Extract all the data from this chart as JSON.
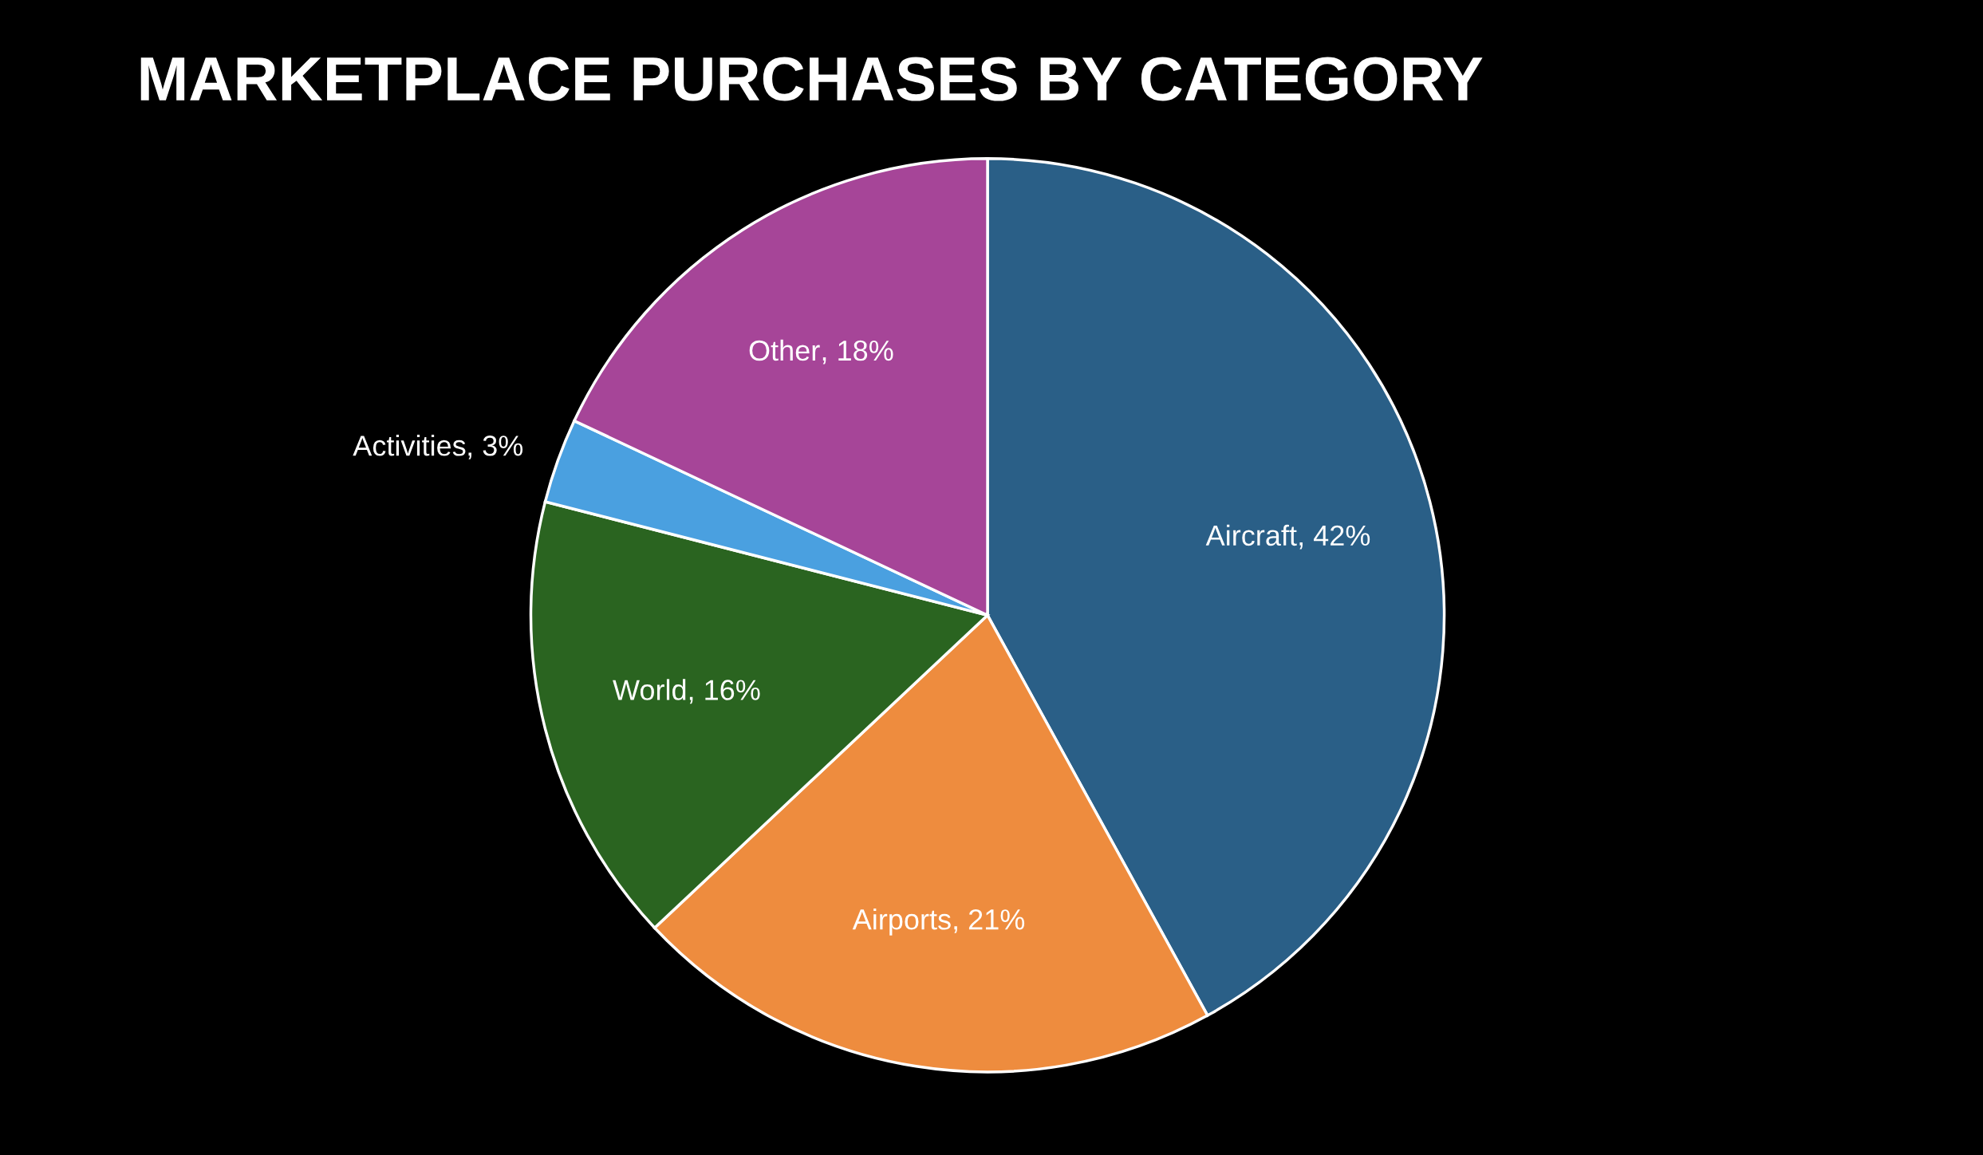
{
  "chart_data": {
    "type": "pie",
    "title": "MARKETPLACE PURCHASES BY CATEGORY",
    "categories": [
      "Aircraft",
      "Airports",
      "World",
      "Activities",
      "Other"
    ],
    "values": [
      42,
      21,
      16,
      3,
      18
    ],
    "colors": [
      "#2a5f87",
      "#ee8c3e",
      "#2a6420",
      "#4aa0e0",
      "#a64598"
    ],
    "value_labels": [
      ", 42%",
      ", 21%",
      ", 16%",
      ", 3%",
      ", 18%"
    ]
  }
}
